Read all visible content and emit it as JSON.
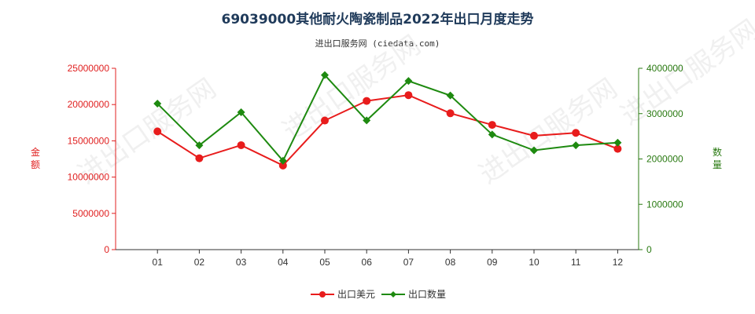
{
  "title": "69039000其他耐火陶瓷制品2022年出口月度走势",
  "subtitle": "进出口服务网 (ciedata.com)",
  "watermark": "进出口服务网",
  "colors": {
    "left_axis": "#e02020",
    "right_axis": "#2a7a12",
    "series_usd": "#e81c1c",
    "series_qty": "#1e8a10"
  },
  "chart_data": {
    "type": "line",
    "title": "69039000其他耐火陶瓷制品2022年出口月度走势",
    "categories": [
      "01",
      "02",
      "03",
      "04",
      "05",
      "06",
      "07",
      "08",
      "09",
      "10",
      "11",
      "12"
    ],
    "y_left": {
      "label": "金额",
      "ylim": [
        0,
        25000000
      ],
      "ticks": [
        "0",
        "5000000",
        "10000000",
        "15000000",
        "20000000",
        "25000000"
      ]
    },
    "y_right": {
      "label": "数量",
      "ylim": [
        0,
        4000000
      ],
      "ticks": [
        "0",
        "1000000",
        "2000000",
        "3000000",
        "4000000"
      ]
    },
    "series": [
      {
        "name": "出口美元",
        "axis": "left",
        "values": [
          16300000,
          12600000,
          14400000,
          11600000,
          17800000,
          20500000,
          21300000,
          18800000,
          17200000,
          15700000,
          16100000,
          13900000
        ]
      },
      {
        "name": "出口数量",
        "axis": "right",
        "values": [
          3220000,
          2300000,
          3030000,
          1960000,
          3850000,
          2850000,
          3720000,
          3400000,
          2540000,
          2190000,
          2300000,
          2360000
        ]
      }
    ],
    "legend_position": "bottom-center",
    "grid": false
  }
}
